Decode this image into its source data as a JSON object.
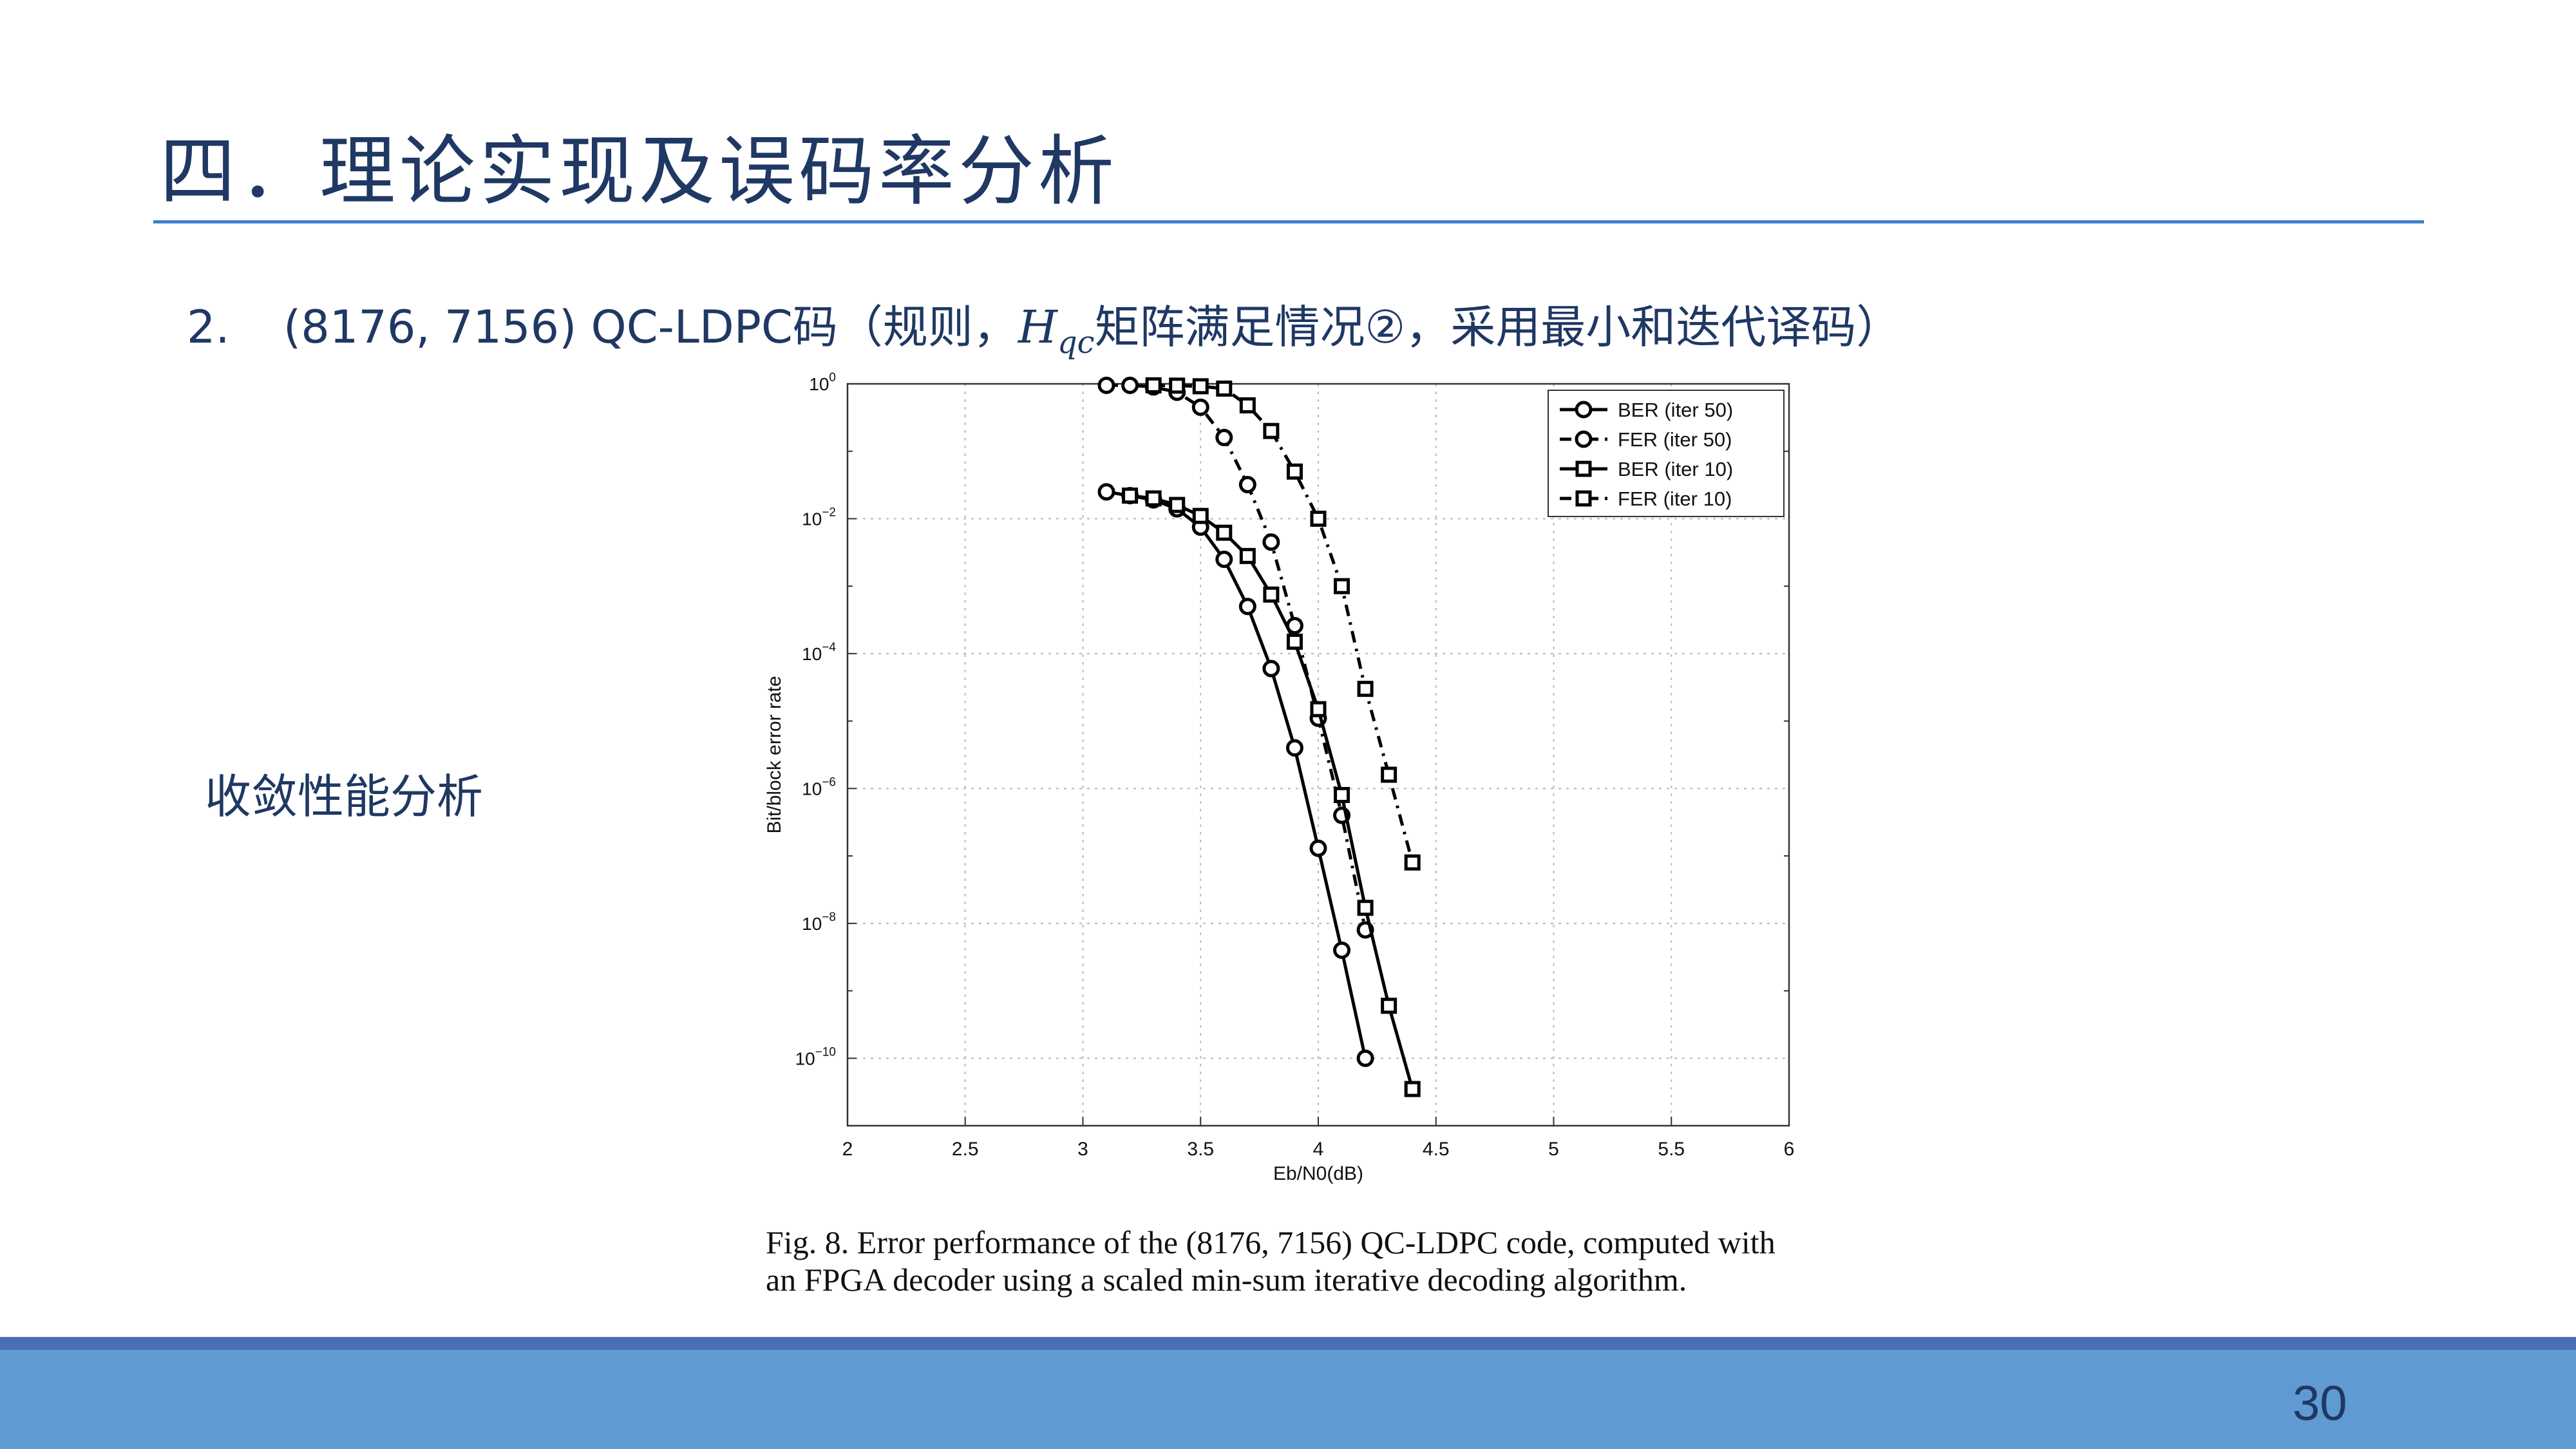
{
  "slide": {
    "title": "四．理论实现及误码率分析",
    "subtitle_num": "2.",
    "subtitle_pre": "(8176, 7156) QC-LDPC码（规则，",
    "subtitle_h": "H",
    "subtitle_h_sub": "qc",
    "subtitle_post": "矩阵满足情况②，采用最小和迭代译码）",
    "side_label": "收敛性能分析",
    "caption_line1": "Fig. 8.    Error performance of the (8176, 7156) QC-LDPC code, computed with",
    "caption_line2": "an FPGA decoder using a scaled min-sum iterative decoding algorithm.",
    "page_number": "30"
  },
  "colors": {
    "title": "#1f3864",
    "rule": "#3f7fc8",
    "footer": "#609ad2",
    "footer_band": "#4a6fb5"
  },
  "chart_data": {
    "type": "line",
    "xlabel": "Eb/N0(dB)",
    "ylabel": "Bit/block error rate",
    "xlim": [
      2,
      6
    ],
    "ylim_log10": [
      -11,
      0
    ],
    "y_scale": "log",
    "grid": true,
    "legend_position": "top-right",
    "x_ticks": [
      "2",
      "2.5",
      "3",
      "3.5",
      "4",
      "4.5",
      "5",
      "5.5",
      "6"
    ],
    "y_ticks": [
      {
        "base": "10",
        "exp": "0",
        "log": 0
      },
      {
        "base": "10",
        "exp": "−2",
        "log": -2
      },
      {
        "base": "10",
        "exp": "−4",
        "log": -4
      },
      {
        "base": "10",
        "exp": "−6",
        "log": -6
      },
      {
        "base": "10",
        "exp": "−8",
        "log": -8
      },
      {
        "base": "10",
        "exp": "−10",
        "log": -10
      }
    ],
    "series": [
      {
        "name": "BER (iter 50)",
        "marker": "circle",
        "dash": "solid",
        "x": [
          3.1,
          3.2,
          3.3,
          3.4,
          3.5,
          3.6,
          3.7,
          3.8,
          3.9,
          4.0,
          4.1,
          4.2
        ],
        "y": [
          0.025,
          0.022,
          0.019,
          0.014,
          0.0075,
          0.0025,
          0.0005,
          6e-05,
          4e-06,
          1.3e-07,
          4e-09,
          1e-10
        ]
      },
      {
        "name": "FER (iter 50)",
        "marker": "circle",
        "dash": "dashdot",
        "x": [
          3.1,
          3.2,
          3.3,
          3.4,
          3.5,
          3.6,
          3.7,
          3.8,
          3.9,
          4.0,
          4.1,
          4.2
        ],
        "y": [
          0.95,
          0.95,
          0.9,
          0.75,
          0.45,
          0.16,
          0.032,
          0.0045,
          0.00026,
          1.1e-05,
          4e-07,
          8e-09
        ]
      },
      {
        "name": "BER (iter 10)",
        "marker": "square",
        "dash": "solid",
        "x": [
          3.2,
          3.3,
          3.4,
          3.5,
          3.6,
          3.7,
          3.8,
          3.9,
          4.0,
          4.1,
          4.2,
          4.3,
          4.4
        ],
        "y": [
          0.022,
          0.02,
          0.016,
          0.011,
          0.0062,
          0.0028,
          0.00075,
          0.00015,
          1.5e-05,
          8e-07,
          1.7e-08,
          6e-10,
          3.5e-11
        ]
      },
      {
        "name": "FER (iter 10)",
        "marker": "square",
        "dash": "dashdot",
        "x": [
          3.3,
          3.4,
          3.5,
          3.6,
          3.7,
          3.8,
          3.9,
          4.0,
          4.1,
          4.2,
          4.3,
          4.4
        ],
        "y": [
          0.95,
          0.94,
          0.92,
          0.85,
          0.48,
          0.2,
          0.05,
          0.01,
          0.001,
          3e-05,
          1.6e-06,
          8e-08
        ]
      }
    ]
  }
}
